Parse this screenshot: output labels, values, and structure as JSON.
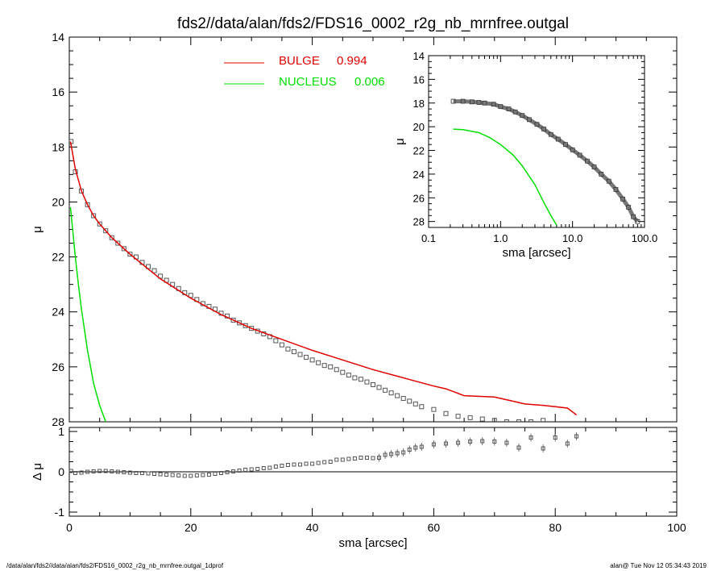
{
  "title": "fds2//data/alan/fds2/FDS16_0002_r2g_nb_mrnfree.outgal",
  "footer": {
    "left": "/data/alan/fds2//data/alan/fds2/FDS16_0002_r2g_nb_mrnfree.outgal_1dprof",
    "right": "alan@  Tue Nov 12 05:34:43 2019"
  },
  "colors": {
    "bulge": "#dd0000",
    "nucleus": "#00dd00",
    "data": "#555555",
    "axes": "#000000"
  },
  "chart_data": [
    {
      "id": "profile",
      "type": "scatter",
      "xlabel": "",
      "ylabel": "μ",
      "xlim": [
        0,
        100
      ],
      "ylim": [
        28,
        14
      ],
      "y_inverted": true,
      "yticks": [
        14,
        16,
        18,
        20,
        22,
        24,
        26,
        28
      ],
      "ytick_labels": [
        "14",
        "16",
        "18",
        "20",
        "22",
        "24",
        "26",
        "28"
      ],
      "legend_position": "top-center",
      "legend": [
        {
          "label": "BULGE",
          "value": "0.994",
          "color": "#dd0000"
        },
        {
          "label": "NUCLEUS",
          "value": "0.006",
          "color": "#00dd00"
        }
      ],
      "series": [
        {
          "name": "BULGE",
          "kind": "line",
          "color": "#dd0000",
          "x": [
            0.2,
            1,
            2,
            3,
            4,
            5,
            7,
            10,
            15,
            20,
            25,
            30,
            35,
            40,
            45,
            50,
            55,
            60,
            62,
            65,
            70,
            73,
            75,
            78,
            80,
            82,
            83.5
          ],
          "y": [
            17.8,
            18.8,
            19.6,
            20.1,
            20.5,
            20.8,
            21.3,
            21.9,
            22.8,
            23.5,
            24.1,
            24.6,
            25.0,
            25.4,
            25.75,
            26.1,
            26.4,
            26.7,
            26.8,
            27.05,
            27.1,
            27.25,
            27.35,
            27.4,
            27.45,
            27.5,
            27.75
          ]
        },
        {
          "name": "NUCLEUS",
          "kind": "line",
          "color": "#00dd00",
          "x": [
            0.2,
            0.5,
            1,
            1.5,
            2,
            3,
            4,
            5,
            6
          ],
          "y": [
            20.2,
            20.9,
            22.0,
            23.0,
            23.9,
            25.4,
            26.6,
            27.4,
            28.0
          ]
        },
        {
          "name": "",
          "kind": "markers",
          "color": "#555555",
          "x": [
            0.3,
            1,
            2,
            3,
            4,
            5,
            6,
            7,
            8,
            9,
            10,
            11,
            12,
            13,
            14,
            15,
            16,
            17,
            18,
            19,
            20,
            21,
            22,
            23,
            24,
            25,
            26,
            27,
            28,
            29,
            30,
            31,
            32,
            33,
            34,
            35,
            36,
            37,
            38,
            39,
            40,
            41,
            42,
            43,
            44,
            45,
            46,
            47,
            48,
            49,
            50,
            51,
            52,
            53,
            54,
            55,
            56,
            57,
            58,
            60,
            62,
            64,
            66,
            68,
            70,
            72,
            74,
            76,
            78
          ],
          "y": [
            17.8,
            18.9,
            19.6,
            20.1,
            20.5,
            20.8,
            21.05,
            21.3,
            21.5,
            21.7,
            21.9,
            22.0,
            22.2,
            22.35,
            22.5,
            22.7,
            22.85,
            23.0,
            23.15,
            23.3,
            23.4,
            23.55,
            23.7,
            23.8,
            23.9,
            24.05,
            24.15,
            24.3,
            24.4,
            24.5,
            24.6,
            24.7,
            24.8,
            24.9,
            25.05,
            25.2,
            25.35,
            25.45,
            25.55,
            25.65,
            25.75,
            25.85,
            25.95,
            26.0,
            26.1,
            26.2,
            26.3,
            26.4,
            26.45,
            26.55,
            26.65,
            26.75,
            26.85,
            26.95,
            27.05,
            27.15,
            27.25,
            27.35,
            27.45,
            27.55,
            27.7,
            27.8,
            27.85,
            27.9,
            27.95,
            28.0,
            28.0,
            28.0,
            27.95
          ]
        }
      ]
    },
    {
      "id": "residuals",
      "type": "scatter",
      "xlabel": "sma [arcsec]",
      "ylabel": "Δ μ",
      "xlim": [
        0,
        100
      ],
      "ylim": [
        -1.1,
        1.1
      ],
      "xticks": [
        0,
        20,
        40,
        60,
        80,
        100
      ],
      "xtick_labels": [
        "0",
        "20",
        "40",
        "60",
        "80",
        "100"
      ],
      "yticks": [
        -1,
        0,
        1
      ],
      "ytick_labels": [
        "-1",
        "0",
        "1"
      ],
      "zero_line": true,
      "series": [
        {
          "name": "",
          "kind": "markers",
          "color": "#555555",
          "x": [
            0.3,
            1,
            2,
            3,
            4,
            5,
            6,
            7,
            8,
            9,
            10,
            11,
            12,
            13,
            14,
            15,
            16,
            17,
            18,
            19,
            20,
            21,
            22,
            23,
            24,
            25,
            26,
            27,
            28,
            29,
            30,
            31,
            32,
            33,
            34,
            35,
            36,
            37,
            38,
            39,
            40,
            41,
            42,
            43,
            44,
            45,
            46,
            47,
            48,
            49,
            50,
            51,
            52,
            53,
            54,
            55,
            56,
            57,
            58,
            60,
            62,
            64,
            66,
            68,
            70,
            72,
            74,
            76,
            78,
            80,
            82,
            83.5
          ],
          "y": [
            0.02,
            -0.03,
            -0.02,
            0.0,
            0.01,
            0.02,
            0.02,
            0.01,
            0.0,
            -0.01,
            -0.02,
            -0.03,
            -0.03,
            -0.04,
            -0.05,
            -0.06,
            -0.07,
            -0.08,
            -0.09,
            -0.1,
            -0.1,
            -0.09,
            -0.08,
            -0.07,
            -0.05,
            -0.03,
            -0.01,
            0.01,
            0.03,
            0.05,
            0.06,
            0.07,
            0.09,
            0.1,
            0.13,
            0.15,
            0.17,
            0.18,
            0.18,
            0.2,
            0.2,
            0.22,
            0.24,
            0.25,
            0.3,
            0.3,
            0.32,
            0.33,
            0.35,
            0.35,
            0.34,
            0.35,
            0.42,
            0.44,
            0.46,
            0.48,
            0.55,
            0.6,
            0.62,
            0.68,
            0.7,
            0.72,
            0.75,
            0.76,
            0.75,
            0.72,
            0.6,
            0.85,
            0.58,
            0.85,
            0.7,
            0.88
          ]
        }
      ]
    },
    {
      "id": "inset",
      "type": "scatter",
      "xlabel": "sma [arcsec]",
      "ylabel": "μ",
      "xscale": "log",
      "xlim": [
        0.1,
        100
      ],
      "ylim": [
        28.5,
        14
      ],
      "y_inverted": true,
      "xticks": [
        0.1,
        1,
        10,
        100
      ],
      "xtick_labels": [
        "0.1",
        "1.0",
        "10.0",
        "100.0"
      ],
      "yticks": [
        14,
        16,
        18,
        20,
        22,
        24,
        26,
        28
      ],
      "ytick_labels": [
        "14",
        "16",
        "18",
        "20",
        "22",
        "24",
        "26",
        "28"
      ],
      "series": [
        {
          "name": "",
          "kind": "markers",
          "color": "#555555",
          "x": [
            0.22,
            0.3,
            0.4,
            0.5,
            0.6,
            0.8,
            1.0,
            1.3,
            1.6,
            2.0,
            2.5,
            3.2,
            4,
            5,
            6.3,
            8,
            10,
            12.6,
            16,
            20,
            25,
            32,
            40,
            50,
            60,
            70,
            80
          ],
          "y": [
            17.85,
            17.85,
            17.9,
            17.95,
            18.0,
            18.1,
            18.3,
            18.5,
            18.75,
            19.05,
            19.4,
            19.8,
            20.2,
            20.65,
            21.05,
            21.5,
            21.95,
            22.4,
            22.9,
            23.4,
            24.0,
            24.6,
            25.3,
            26.1,
            26.8,
            27.6,
            28.0
          ]
        },
        {
          "name": "NUCLEUS",
          "kind": "line",
          "color": "#00dd00",
          "x": [
            0.22,
            0.3,
            0.5,
            0.7,
            1.0,
            1.5,
            2.0,
            3.0,
            4.0,
            5.0,
            6.0
          ],
          "y": [
            20.2,
            20.25,
            20.5,
            20.9,
            21.5,
            22.4,
            23.3,
            24.9,
            26.4,
            27.5,
            28.3
          ]
        }
      ]
    }
  ]
}
